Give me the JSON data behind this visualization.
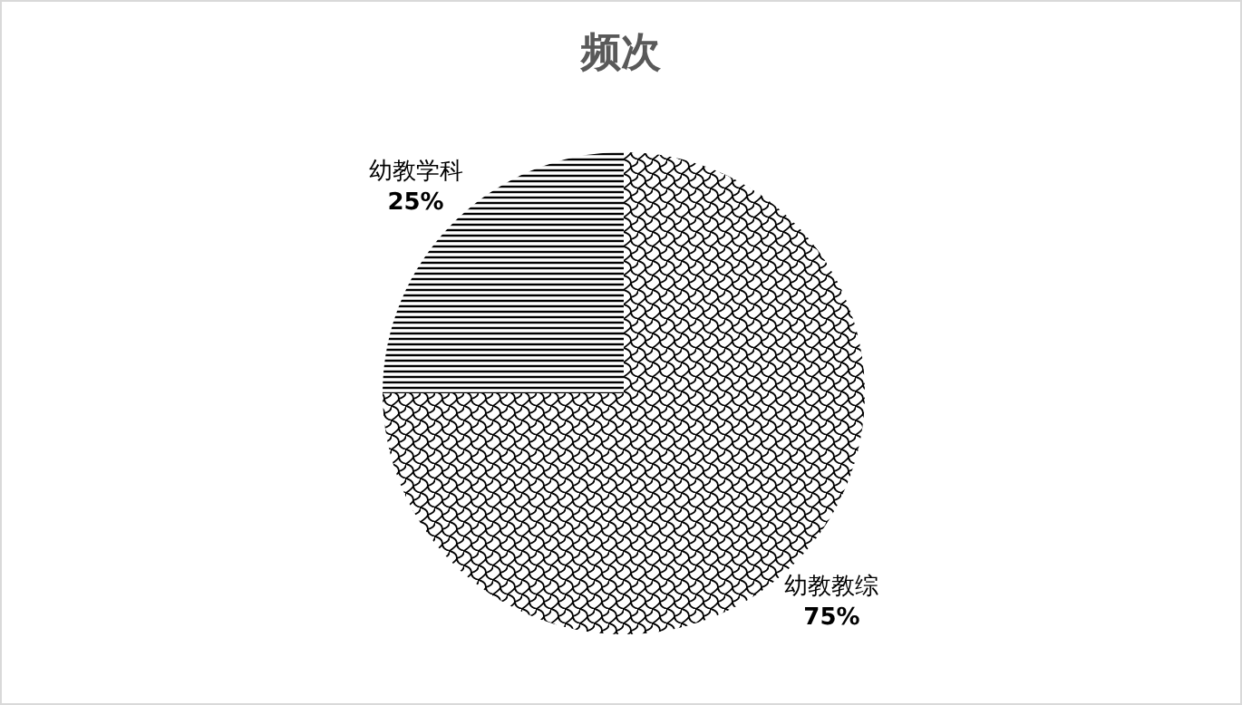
{
  "chart_data": {
    "type": "pie",
    "title": "频次",
    "categories": [
      "幼教教综",
      "幼教学科"
    ],
    "values": [
      75,
      25
    ],
    "data_labels": true,
    "value_labels": [
      "75%",
      "25%"
    ],
    "colors": [
      "#000000",
      "#000000"
    ]
  }
}
